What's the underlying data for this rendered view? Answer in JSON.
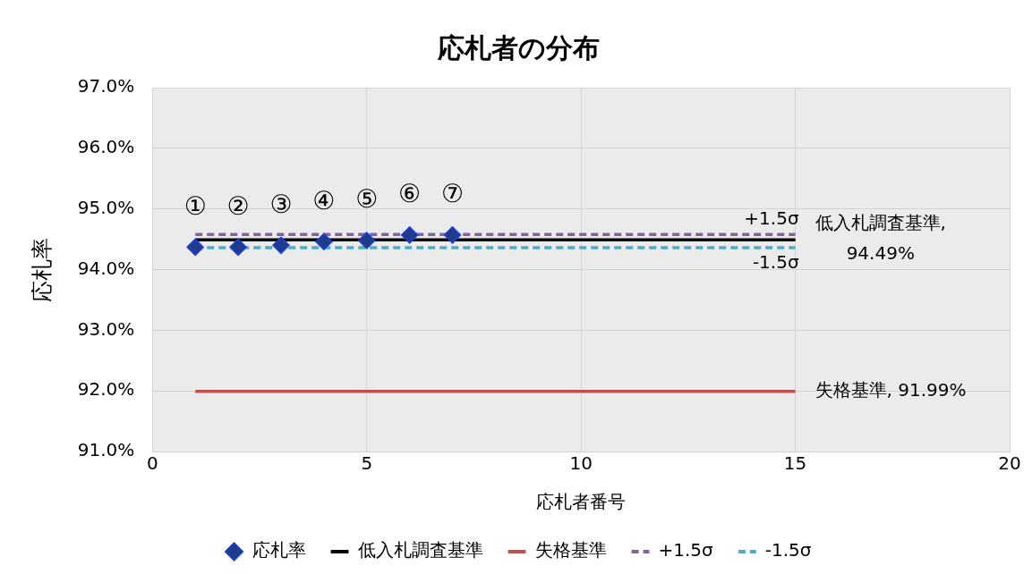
{
  "chart_data": {
    "type": "scatter",
    "title": "応札者の分布",
    "xlabel": "応札者番号",
    "ylabel": "応札率",
    "xlim": [
      0,
      20
    ],
    "xticks": [
      0,
      5,
      10,
      15,
      20
    ],
    "ylim": [
      91,
      97
    ],
    "yticks": [
      {
        "value": 91,
        "label": "91.0%"
      },
      {
        "value": 92,
        "label": "92.0%"
      },
      {
        "value": 93,
        "label": "93.0%"
      },
      {
        "value": 94,
        "label": "94.0%"
      },
      {
        "value": 95,
        "label": "95.0%"
      },
      {
        "value": 96,
        "label": "96.0%"
      },
      {
        "value": 97,
        "label": "97.0%"
      }
    ],
    "grid": true,
    "legend": "bottom",
    "series": [
      {
        "name": "応札率",
        "marker": "diamond",
        "color": "#1f3c88",
        "x": [
          1,
          2,
          3,
          4,
          5,
          6,
          7
        ],
        "values": [
          94.37,
          94.37,
          94.4,
          94.46,
          94.48,
          94.57,
          94.57
        ]
      },
      {
        "name": "低入札調査基準",
        "type": "line",
        "marker": "none",
        "line_style": "solid",
        "color": "#000000",
        "x": [
          1,
          15
        ],
        "values": [
          94.49,
          94.49
        ]
      },
      {
        "name": "失格基準",
        "type": "line",
        "marker": "none",
        "line_style": "solid",
        "color": "#c0504d",
        "x": [
          1,
          15
        ],
        "values": [
          91.99,
          91.99
        ]
      },
      {
        "name": "+1.5σ",
        "type": "line",
        "marker": "none",
        "line_style": "dashed",
        "color": "#8064a2",
        "x": [
          1,
          15
        ],
        "values": [
          94.58,
          94.58
        ]
      },
      {
        "name": "-1.5σ",
        "type": "line",
        "marker": "none",
        "line_style": "dashed",
        "color": "#4bacc6",
        "x": [
          1,
          15
        ],
        "values": [
          94.36,
          94.36
        ]
      }
    ],
    "annotations": [
      {
        "text": "①",
        "x": 1,
        "y": 94.37
      },
      {
        "text": "②",
        "x": 2,
        "y": 94.37
      },
      {
        "text": "③",
        "x": 3,
        "y": 94.4
      },
      {
        "text": "④",
        "x": 4,
        "y": 94.46
      },
      {
        "text": "⑤",
        "x": 5,
        "y": 94.48
      },
      {
        "text": "⑥",
        "x": 6,
        "y": 94.57
      },
      {
        "text": "⑦",
        "x": 7,
        "y": 94.57
      },
      {
        "text": "+1.5σ",
        "x": 15,
        "y": 94.58
      },
      {
        "text": "-1.5σ",
        "x": 15,
        "y": 94.36
      },
      {
        "text": "低入札調査基準,\n94.49%",
        "x": 15,
        "y": 94.49
      },
      {
        "text": "失格基準, 91.99%",
        "x": 15,
        "y": 91.99
      }
    ]
  }
}
